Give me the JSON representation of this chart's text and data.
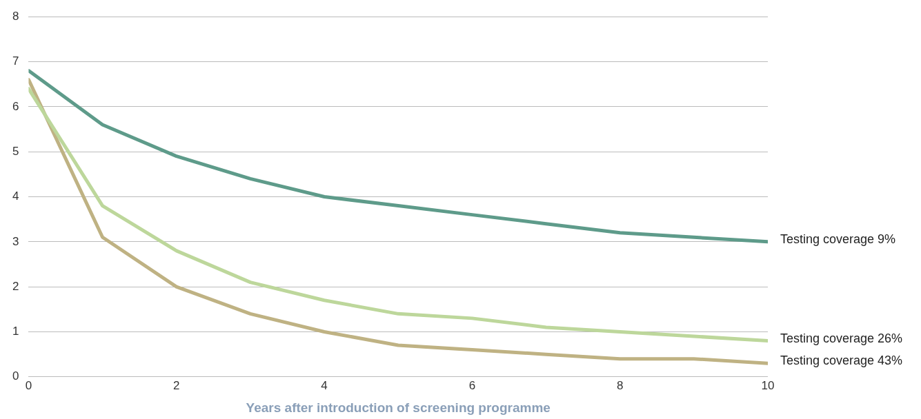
{
  "chart_data": {
    "type": "line",
    "xlabel": "Years after introduction of screening programme",
    "x": [
      0,
      1,
      2,
      3,
      4,
      5,
      6,
      7,
      8,
      9,
      10
    ],
    "series": [
      {
        "name": "Testing coverage 9%",
        "color": "#5e9b8a",
        "values": [
          6.8,
          5.6,
          4.9,
          4.4,
          4.0,
          3.8,
          3.6,
          3.4,
          3.2,
          3.1,
          3.0
        ]
      },
      {
        "name": "Testing coverage 26%",
        "color": "#bdd79b",
        "values": [
          6.4,
          3.8,
          2.8,
          2.1,
          1.7,
          1.4,
          1.3,
          1.1,
          1.0,
          0.9,
          0.8
        ]
      },
      {
        "name": "Testing coverage 43%",
        "color": "#bfb283",
        "values": [
          6.6,
          3.1,
          2.0,
          1.4,
          1.0,
          0.7,
          0.6,
          0.5,
          0.4,
          0.4,
          0.3
        ]
      }
    ],
    "xlim": [
      0,
      10
    ],
    "xticks": [
      0,
      2,
      4,
      6,
      8,
      10
    ],
    "ylim": [
      0,
      8
    ],
    "yticks": [
      0,
      1,
      2,
      3,
      4,
      5,
      6,
      7,
      8
    ],
    "grid": "y",
    "legend": false,
    "marker": "none",
    "line_style": "solid"
  }
}
